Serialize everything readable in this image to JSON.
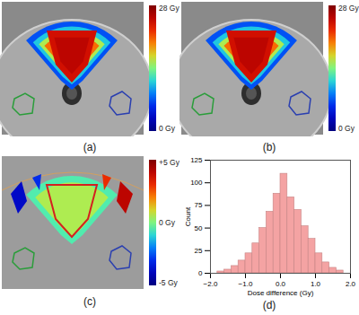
{
  "chart_data": [
    {
      "type": "heatmap",
      "title": "(a)",
      "color": "jet",
      "colorbar": {
        "range": [
          0,
          28
        ],
        "ticks": [
          {
            "value": 0,
            "label": "0 Gy"
          },
          {
            "value": 28,
            "label": "28 Gy"
          }
        ]
      }
    },
    {
      "type": "heatmap",
      "title": "(b)",
      "color": "jet",
      "colorbar": {
        "range": [
          0,
          28
        ],
        "ticks": [
          {
            "value": 0,
            "label": "0 Gy"
          },
          {
            "value": 28,
            "label": "28 Gy"
          }
        ]
      }
    },
    {
      "type": "heatmap",
      "title": "(c)",
      "color": "jet",
      "colorbar": {
        "range": [
          -5,
          5
        ],
        "ticks": [
          {
            "value": -5,
            "label": "-5 Gy"
          },
          {
            "value": 0,
            "label": "0 Gy"
          },
          {
            "value": 5,
            "label": "+5 Gy"
          }
        ]
      }
    },
    {
      "type": "histogram",
      "title": "(d)",
      "color": "#f4a3a3",
      "bins": [
        -1.8,
        -1.6,
        -1.4,
        -1.2,
        -1.0,
        -0.8,
        -0.6,
        -0.4,
        -0.2,
        0.0,
        0.2,
        0.4,
        0.6,
        0.8,
        1.0,
        1.2,
        1.4,
        1.6,
        1.8
      ],
      "counts": [
        2,
        4,
        8,
        14,
        22,
        33,
        50,
        68,
        88,
        110,
        84,
        70,
        52,
        38,
        22,
        12,
        6,
        3
      ],
      "x_label": "Dose difference (Gy)",
      "y_label": "Count",
      "xlim": [
        -2,
        2
      ],
      "xticks": [
        -2,
        -1,
        0,
        1,
        2
      ],
      "ylim": [
        0,
        125
      ],
      "yticks": [
        0,
        25,
        50,
        75,
        100,
        125
      ]
    }
  ]
}
